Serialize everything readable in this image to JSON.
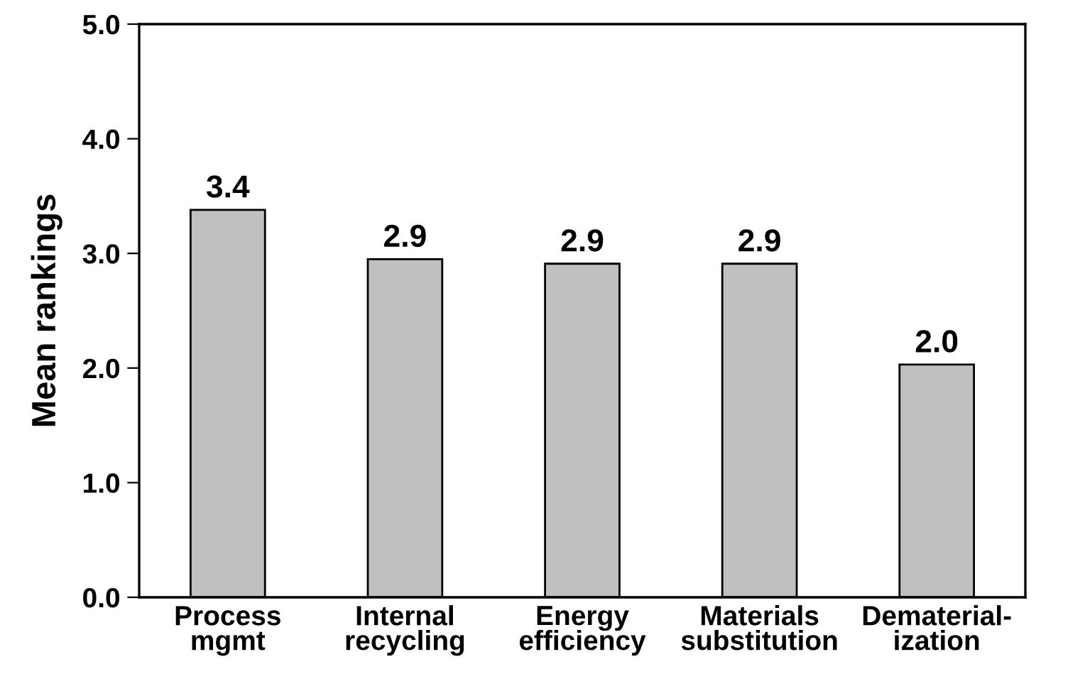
{
  "chart_data": {
    "type": "bar",
    "ylabel": "Mean rankings",
    "categories": [
      "Process\nmgmt",
      "Internal\nrecycling",
      "Energy\nefficiency",
      "Materials\nsubstitution",
      "Dematerial-\nization"
    ],
    "values": [
      3.38,
      2.95,
      2.91,
      2.91,
      2.03
    ],
    "value_labels": [
      "3.4",
      "2.9",
      "2.9",
      "2.9",
      "2.0"
    ],
    "color": "#c0c0c0",
    "ylim": [
      0,
      5
    ],
    "yticks": [
      {
        "value": 0,
        "label": "0.0"
      },
      {
        "value": 1,
        "label": "1.0"
      },
      {
        "value": 2,
        "label": "2.0"
      },
      {
        "value": 3,
        "label": "3.0"
      },
      {
        "value": 4,
        "label": "4.0"
      },
      {
        "value": 5,
        "label": "5.0"
      }
    ],
    "grid": false
  }
}
